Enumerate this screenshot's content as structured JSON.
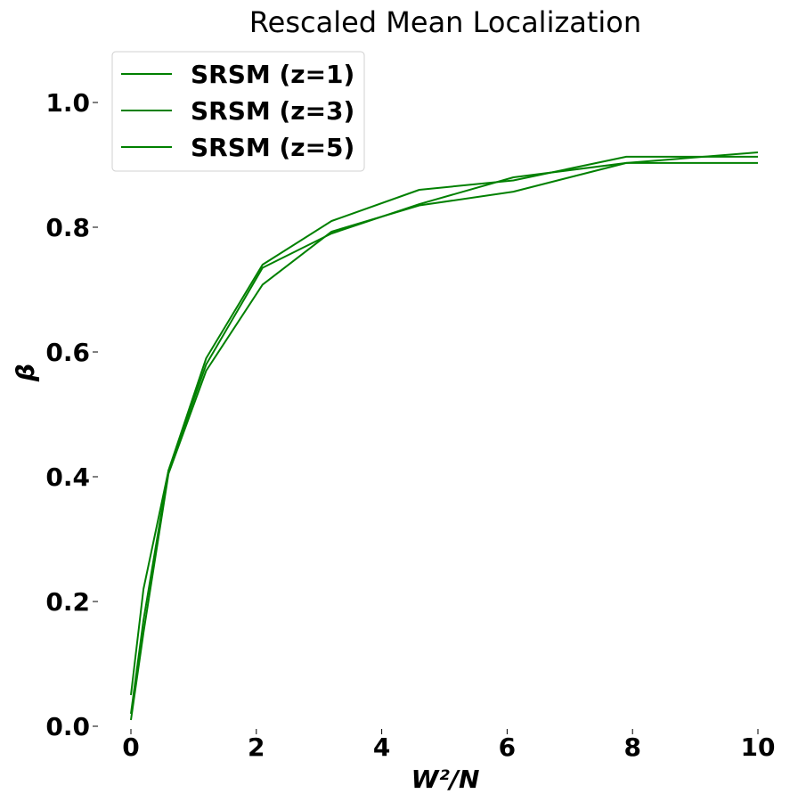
{
  "chart_data": {
    "type": "line",
    "title": "Rescaled Mean Localization",
    "xlabel": "W²/N",
    "ylabel": "β",
    "xlim": [
      0,
      10
    ],
    "ylim": [
      0,
      1.0
    ],
    "x_ticks": [
      "0",
      "2",
      "4",
      "6",
      "8",
      "10"
    ],
    "y_ticks": [
      "0.0",
      "0.2",
      "0.4",
      "0.6",
      "0.8",
      "1.0"
    ],
    "grid": false,
    "legend_position": "top-left",
    "series_color": "#008000",
    "series": [
      {
        "name": "SRSM (z=1)",
        "x": [
          0,
          0.2,
          0.6,
          1.2,
          2.1,
          3.2,
          4.6,
          6.1,
          7.9,
          10
        ],
        "y": [
          0.05,
          0.22,
          0.41,
          0.59,
          0.74,
          0.81,
          0.86,
          0.875,
          0.913,
          0.913
        ]
      },
      {
        "name": "SRSM (z=3)",
        "x": [
          0,
          0.2,
          0.6,
          1.2,
          2.1,
          3.2,
          4.6,
          6.1,
          7.9,
          10
        ],
        "y": [
          0.02,
          0.17,
          0.41,
          0.58,
          0.735,
          0.79,
          0.837,
          0.88,
          0.903,
          0.92
        ]
      },
      {
        "name": "SRSM (z=5)",
        "x": [
          0,
          0.2,
          0.6,
          1.2,
          2.1,
          3.2,
          4.6,
          6.1,
          7.9,
          10
        ],
        "y": [
          0.01,
          0.15,
          0.405,
          0.57,
          0.708,
          0.793,
          0.835,
          0.857,
          0.903,
          0.903
        ]
      }
    ]
  }
}
